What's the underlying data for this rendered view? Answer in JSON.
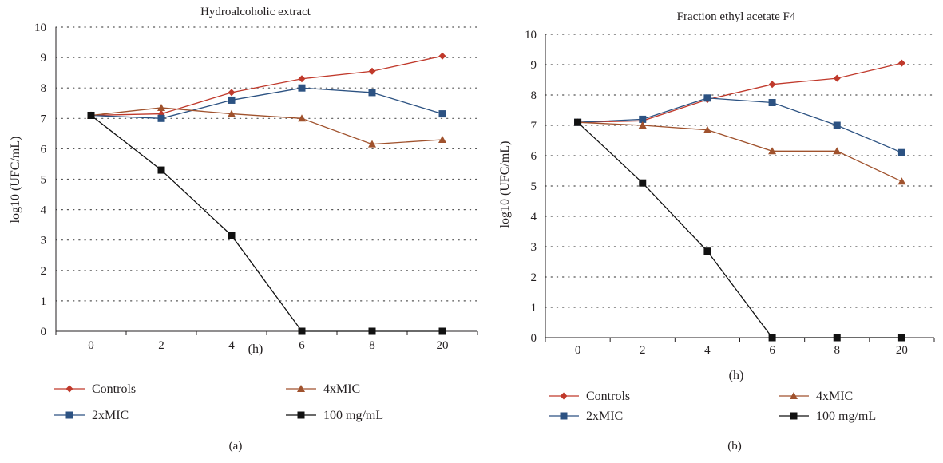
{
  "chart_data": [
    {
      "panel_label": "(a)",
      "type": "line",
      "title": "Hydroalcoholic extract",
      "xlabel": "(h)",
      "ylabel": "log10 (UFC/mL)",
      "categories": [
        "0",
        "2",
        "4",
        "6",
        "8",
        "20"
      ],
      "ylim": [
        0,
        10
      ],
      "yticks": [
        "0",
        "1",
        "2",
        "3",
        "4",
        "5",
        "6",
        "7",
        "8",
        "9",
        "10"
      ],
      "grid": "dotted horizontal",
      "series": [
        {
          "name": "Controls",
          "marker": "diamond",
          "color": "#c0392b",
          "values": [
            7.1,
            7.15,
            7.85,
            8.3,
            8.55,
            9.05
          ]
        },
        {
          "name": "2xMIC",
          "marker": "square",
          "color": "#2c5282",
          "values": [
            7.1,
            7.0,
            7.6,
            8.0,
            7.85,
            7.15
          ]
        },
        {
          "name": "4xMIC",
          "marker": "triangle",
          "color": "#a0522d",
          "values": [
            7.1,
            7.35,
            7.15,
            7.0,
            6.15,
            6.3
          ]
        },
        {
          "name": "100 mg/mL",
          "marker": "square",
          "color": "#111111",
          "values": [
            7.1,
            5.3,
            3.15,
            0,
            0,
            0
          ]
        }
      ]
    },
    {
      "panel_label": "(b)",
      "type": "line",
      "title": "Fraction ethyl acetate F4",
      "xlabel": "(h)",
      "ylabel": "log10 (UFC/mL)",
      "categories": [
        "0",
        "2",
        "4",
        "6",
        "8",
        "20"
      ],
      "ylim": [
        0,
        10
      ],
      "yticks": [
        "0",
        "1",
        "2",
        "3",
        "4",
        "5",
        "6",
        "7",
        "8",
        "9",
        "10"
      ],
      "grid": "dotted horizontal",
      "series": [
        {
          "name": "Controls",
          "marker": "diamond",
          "color": "#c0392b",
          "values": [
            7.1,
            7.15,
            7.85,
            8.35,
            8.55,
            9.05
          ]
        },
        {
          "name": "2xMIC",
          "marker": "square",
          "color": "#2c5282",
          "values": [
            7.1,
            7.2,
            7.9,
            7.75,
            7.0,
            6.1
          ]
        },
        {
          "name": "4xMIC",
          "marker": "triangle",
          "color": "#a0522d",
          "values": [
            7.1,
            7.0,
            6.85,
            6.15,
            6.15,
            5.15
          ]
        },
        {
          "name": "100 mg/mL",
          "marker": "square",
          "color": "#111111",
          "values": [
            7.1,
            5.1,
            2.85,
            0,
            0,
            0
          ]
        }
      ]
    }
  ]
}
